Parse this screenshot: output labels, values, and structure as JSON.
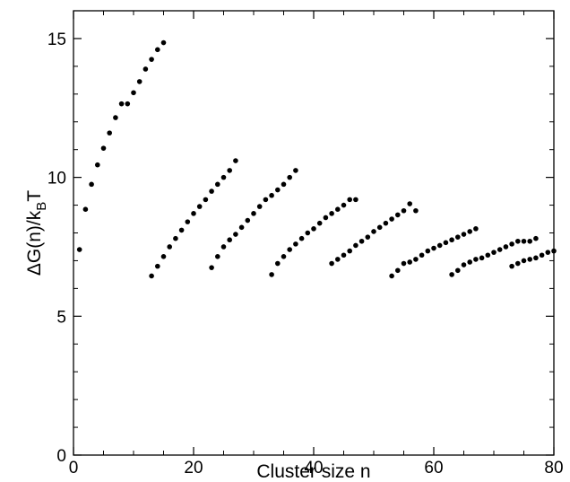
{
  "chart_data": {
    "type": "scatter",
    "xlabel": "Cluster size n",
    "ylabel_main": "ΔG(n)/k",
    "ylabel_sub": "B",
    "ylabel_end": "T",
    "xlim": [
      0,
      80
    ],
    "ylim": [
      0,
      16
    ],
    "xticks": [
      0,
      20,
      40,
      60,
      80
    ],
    "yticks": [
      0,
      5,
      10,
      15
    ],
    "grid": false,
    "points": [
      [
        1,
        7.4
      ],
      [
        2,
        8.85
      ],
      [
        3,
        9.75
      ],
      [
        4,
        10.45
      ],
      [
        5,
        11.05
      ],
      [
        6,
        11.6
      ],
      [
        7,
        12.15
      ],
      [
        8,
        12.65
      ],
      [
        9,
        12.65
      ],
      [
        10,
        13.05
      ],
      [
        11,
        13.45
      ],
      [
        12,
        13.9
      ],
      [
        13,
        14.25
      ],
      [
        14,
        14.6
      ],
      [
        15,
        14.85
      ],
      [
        13,
        6.45
      ],
      [
        14,
        6.8
      ],
      [
        15,
        7.15
      ],
      [
        16,
        7.5
      ],
      [
        17,
        7.8
      ],
      [
        18,
        8.1
      ],
      [
        19,
        8.4
      ],
      [
        20,
        8.7
      ],
      [
        21,
        8.95
      ],
      [
        22,
        9.2
      ],
      [
        23,
        9.5
      ],
      [
        24,
        9.75
      ],
      [
        25,
        10.0
      ],
      [
        26,
        10.25
      ],
      [
        27,
        10.6
      ],
      [
        23,
        6.75
      ],
      [
        24,
        7.15
      ],
      [
        25,
        7.5
      ],
      [
        26,
        7.75
      ],
      [
        27,
        7.95
      ],
      [
        28,
        8.2
      ],
      [
        29,
        8.45
      ],
      [
        30,
        8.7
      ],
      [
        31,
        8.95
      ],
      [
        32,
        9.2
      ],
      [
        33,
        9.35
      ],
      [
        34,
        9.55
      ],
      [
        35,
        9.75
      ],
      [
        36,
        10.0
      ],
      [
        37,
        10.25
      ],
      [
        33,
        6.5
      ],
      [
        34,
        6.9
      ],
      [
        35,
        7.15
      ],
      [
        36,
        7.4
      ],
      [
        37,
        7.6
      ],
      [
        38,
        7.8
      ],
      [
        39,
        8.0
      ],
      [
        40,
        8.15
      ],
      [
        41,
        8.35
      ],
      [
        42,
        8.55
      ],
      [
        43,
        8.7
      ],
      [
        44,
        8.85
      ],
      [
        45,
        9.0
      ],
      [
        46,
        9.2
      ],
      [
        47,
        9.2
      ],
      [
        43,
        6.9
      ],
      [
        44,
        7.05
      ],
      [
        45,
        7.2
      ],
      [
        46,
        7.35
      ],
      [
        47,
        7.55
      ],
      [
        48,
        7.7
      ],
      [
        49,
        7.85
      ],
      [
        50,
        8.05
      ],
      [
        51,
        8.2
      ],
      [
        52,
        8.35
      ],
      [
        53,
        8.5
      ],
      [
        54,
        8.65
      ],
      [
        55,
        8.8
      ],
      [
        56,
        9.05
      ],
      [
        57,
        8.8
      ],
      [
        53,
        6.45
      ],
      [
        54,
        6.65
      ],
      [
        55,
        6.9
      ],
      [
        56,
        6.95
      ],
      [
        57,
        7.05
      ],
      [
        58,
        7.2
      ],
      [
        59,
        7.35
      ],
      [
        60,
        7.45
      ],
      [
        61,
        7.55
      ],
      [
        62,
        7.65
      ],
      [
        63,
        7.75
      ],
      [
        64,
        7.85
      ],
      [
        65,
        7.95
      ],
      [
        66,
        8.05
      ],
      [
        67,
        8.15
      ],
      [
        63,
        6.5
      ],
      [
        64,
        6.65
      ],
      [
        65,
        6.85
      ],
      [
        66,
        6.95
      ],
      [
        67,
        7.05
      ],
      [
        68,
        7.1
      ],
      [
        69,
        7.2
      ],
      [
        70,
        7.3
      ],
      [
        71,
        7.4
      ],
      [
        72,
        7.5
      ],
      [
        73,
        7.6
      ],
      [
        74,
        7.7
      ],
      [
        75,
        7.7
      ],
      [
        76,
        7.7
      ],
      [
        77,
        7.8
      ],
      [
        73,
        6.8
      ],
      [
        74,
        6.9
      ],
      [
        75,
        7.0
      ],
      [
        76,
        7.05
      ],
      [
        77,
        7.1
      ],
      [
        78,
        7.2
      ],
      [
        79,
        7.3
      ],
      [
        80,
        7.35
      ]
    ]
  }
}
